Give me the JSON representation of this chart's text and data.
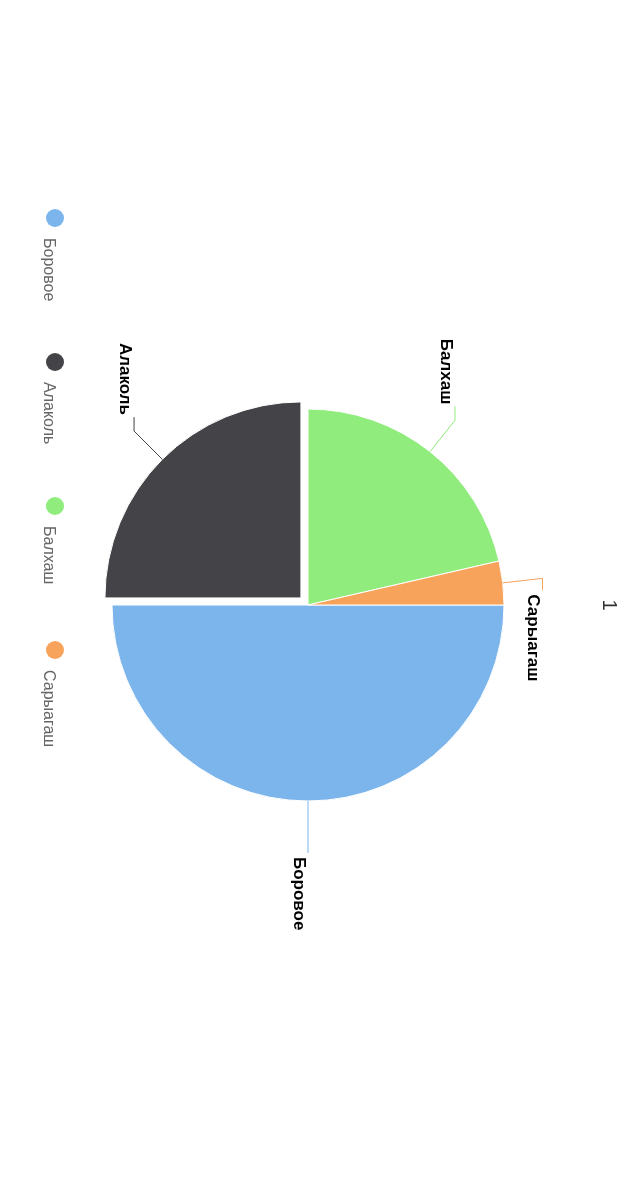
{
  "chart_data": {
    "type": "pie",
    "title": "1",
    "categories": [
      "Боровое",
      "Алаколь",
      "Балхаш",
      "Сарыагаш"
    ],
    "values": [
      50,
      25,
      21.4,
      3.6
    ],
    "colors": [
      "#7cb5ec",
      "#434348",
      "#90ed7d",
      "#f7a35c"
    ],
    "legend": "left"
  }
}
